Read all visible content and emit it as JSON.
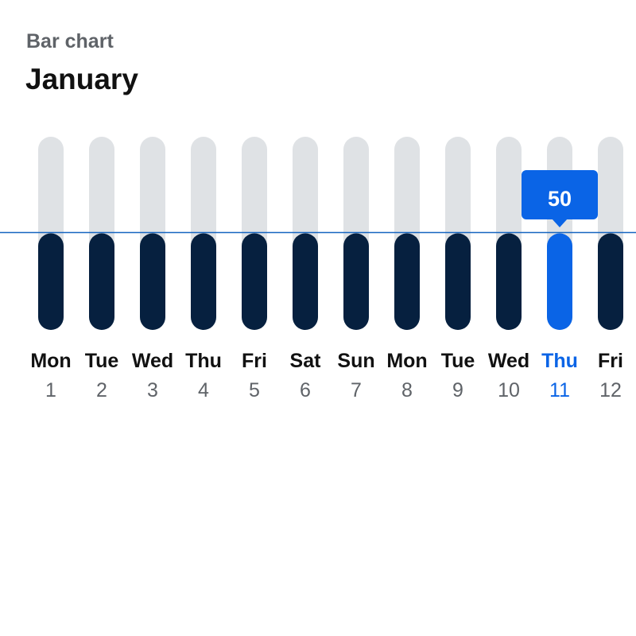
{
  "header": {
    "subtitle": "Bar chart",
    "title": "January"
  },
  "colors": {
    "track": "#dfe2e5",
    "bar": "#06203f",
    "highlight": "#0a64e6",
    "reference_line": "#1565c0",
    "day_text": "#111111",
    "date_text": "#5f6368",
    "tooltip_text": "#ffffff"
  },
  "chart_data": {
    "type": "bar",
    "title": "January",
    "subtitle": "Bar chart",
    "categories": [
      "Mon",
      "Tue",
      "Wed",
      "Thu",
      "Fri",
      "Sat",
      "Sun",
      "Mon",
      "Tue",
      "Wed",
      "Thu",
      "Fri"
    ],
    "dates": [
      "1",
      "2",
      "3",
      "4",
      "5",
      "6",
      "7",
      "8",
      "9",
      "10",
      "11",
      "12"
    ],
    "values": [
      50,
      50,
      50,
      50,
      50,
      50,
      50,
      50,
      50,
      50,
      50,
      50
    ],
    "ylim": [
      0,
      100
    ],
    "reference_line": 50,
    "selected_index": 10,
    "tooltip": "50",
    "grid": false,
    "legend": "none"
  }
}
